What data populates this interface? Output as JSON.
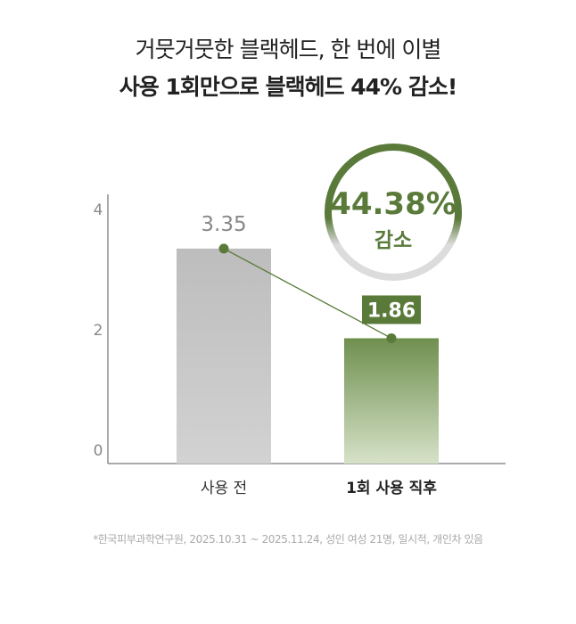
{
  "headline": {
    "line1": "거뭇거뭇한 블랙헤드, 한 번에 이별",
    "line2": "사용 1회만으로 블랙헤드 44% 감소!"
  },
  "badge": {
    "percent": "44.38%",
    "label": "감소"
  },
  "footnote": "*한국피부과학연구원, 2025.10.31 ~ 2025.11.24, 성인 여성 21명, 일시적, 개인차 있음",
  "colors": {
    "before": "#c4c4c4",
    "after": "#6f8f4f",
    "accent": "#5a7a3a",
    "text": "#222222"
  },
  "chart_data": {
    "type": "bar",
    "categories": [
      "사용 전",
      "1회 사용 직후"
    ],
    "values": [
      3.35,
      1.86
    ],
    "data_labels": [
      "3.35",
      "1.86"
    ],
    "y_ticks": [
      "0",
      "2",
      "4"
    ],
    "ylim": [
      0,
      4
    ],
    "grid": false,
    "legend": "none"
  }
}
